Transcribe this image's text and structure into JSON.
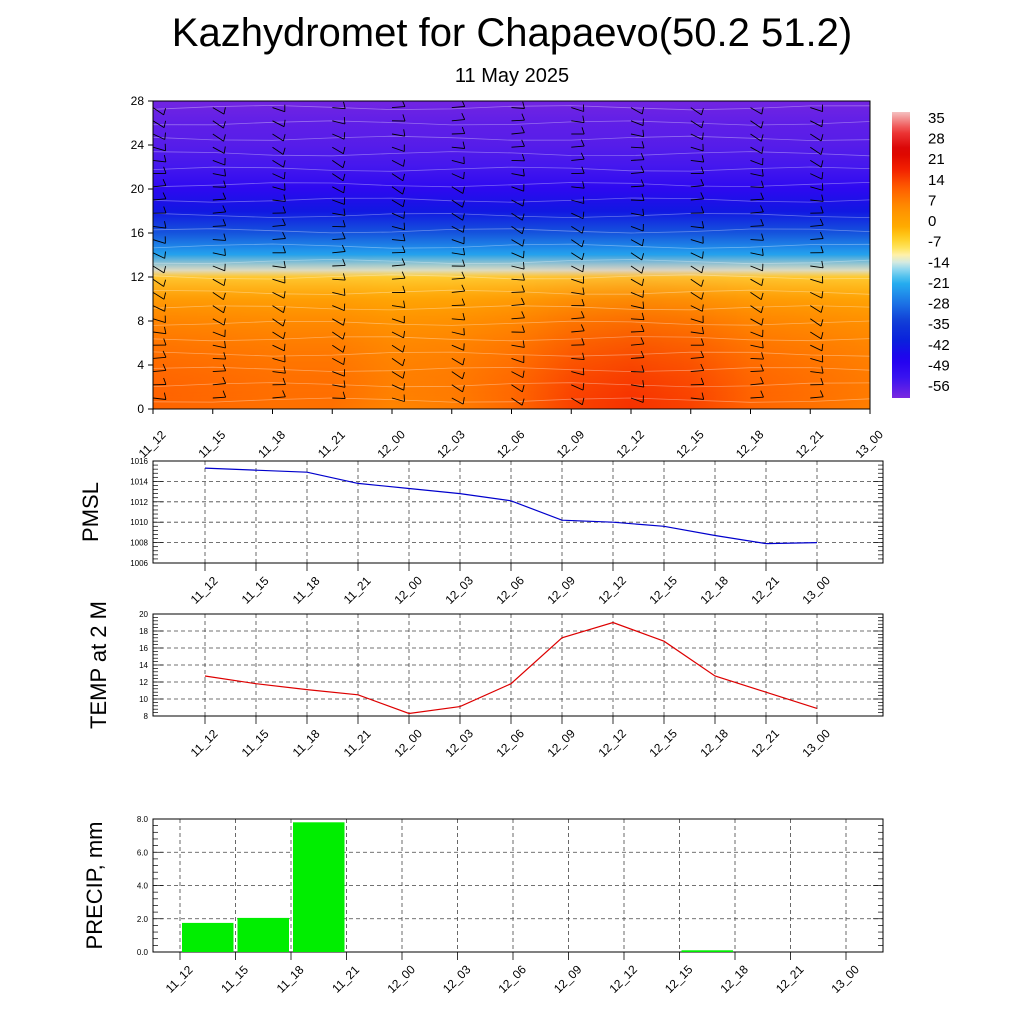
{
  "header": {
    "title": "Kazhydromet for Chapaevo(50.2 51.2)",
    "subtitle": "11 May 2025"
  },
  "chart_data": [
    {
      "type": "heatmap",
      "times": [
        "11_12",
        "11_15",
        "11_18",
        "11_21",
        "12_00",
        "12_03",
        "12_06",
        "12_09",
        "12_12",
        "12_15",
        "12_18",
        "12_21",
        "13_00"
      ],
      "y_ticks": [
        0,
        4,
        8,
        12,
        16,
        20,
        24,
        28
      ],
      "ylim": [
        0,
        28
      ],
      "colorbar_labels": [
        "35",
        "28",
        "21",
        "14",
        "7",
        "0",
        "-7",
        "-14",
        "-21",
        "-28",
        "-35",
        "-42",
        "-49",
        "-56"
      ],
      "colorbar_range": [
        -63,
        42
      ],
      "profile_levels": [
        0,
        2,
        4,
        6,
        8,
        10,
        12,
        12.6,
        14,
        16,
        18,
        20,
        22,
        24,
        26,
        28
      ],
      "profile_temps": [
        18,
        14,
        10,
        7,
        3,
        -1,
        -6,
        -13,
        -22,
        -32,
        -44,
        -52,
        -57,
        -59,
        -60,
        -62
      ],
      "surface_temps": [
        13,
        12,
        11,
        11,
        8,
        9,
        12,
        17,
        19,
        17,
        13,
        11,
        9
      ],
      "wind_barbs": "black wind barbs at each time and level"
    },
    {
      "type": "line",
      "ylabel": "PMSL",
      "x": [
        "11_12",
        "11_15",
        "11_18",
        "11_21",
        "12_00",
        "12_03",
        "12_06",
        "12_09",
        "12_12",
        "12_15",
        "12_18",
        "12_21",
        "13_00"
      ],
      "y_ticks": [
        "1006",
        "1008",
        "1010",
        "1012",
        "1014",
        "1016"
      ],
      "ylim": [
        1006,
        1016
      ],
      "series": [
        {
          "values": [
            1015.3,
            1015.1,
            1014.9,
            1013.8,
            1013.3,
            1012.8,
            1012.1,
            1010.2,
            1010.0,
            1009.6,
            1008.7,
            1007.9,
            1008.0
          ],
          "color": "#0000cc"
        }
      ],
      "grid": true
    },
    {
      "type": "line",
      "ylabel": "TEMP at 2 M",
      "x": [
        "11_12",
        "11_15",
        "11_18",
        "11_21",
        "12_00",
        "12_03",
        "12_06",
        "12_09",
        "12_12",
        "12_15",
        "12_18",
        "12_21",
        "13_00"
      ],
      "y_ticks": [
        "8",
        "10",
        "12",
        "14",
        "16",
        "18",
        "20"
      ],
      "ylim": [
        8,
        20
      ],
      "series": [
        {
          "values": [
            12.7,
            11.8,
            11.1,
            10.5,
            8.3,
            9.1,
            11.8,
            17.2,
            19.0,
            16.8,
            12.7,
            10.8,
            8.9
          ],
          "color": "#dd0000"
        }
      ],
      "grid": true
    },
    {
      "type": "bar",
      "ylabel": "PRECIP, mm",
      "categories": [
        "11_12",
        "11_15",
        "11_18",
        "11_21",
        "12_00",
        "12_03",
        "12_06",
        "12_09",
        "12_12",
        "12_15",
        "12_18",
        "12_21",
        "13_00"
      ],
      "y_ticks": [
        "0.0",
        "2.0",
        "4.0",
        "6.0",
        "8.0"
      ],
      "ylim": [
        0,
        8
      ],
      "values": [
        0,
        1.75,
        2.05,
        7.8,
        0,
        0,
        0,
        0,
        0,
        0,
        0.1,
        0,
        0
      ],
      "color": "#00ee00",
      "grid": true
    }
  ]
}
